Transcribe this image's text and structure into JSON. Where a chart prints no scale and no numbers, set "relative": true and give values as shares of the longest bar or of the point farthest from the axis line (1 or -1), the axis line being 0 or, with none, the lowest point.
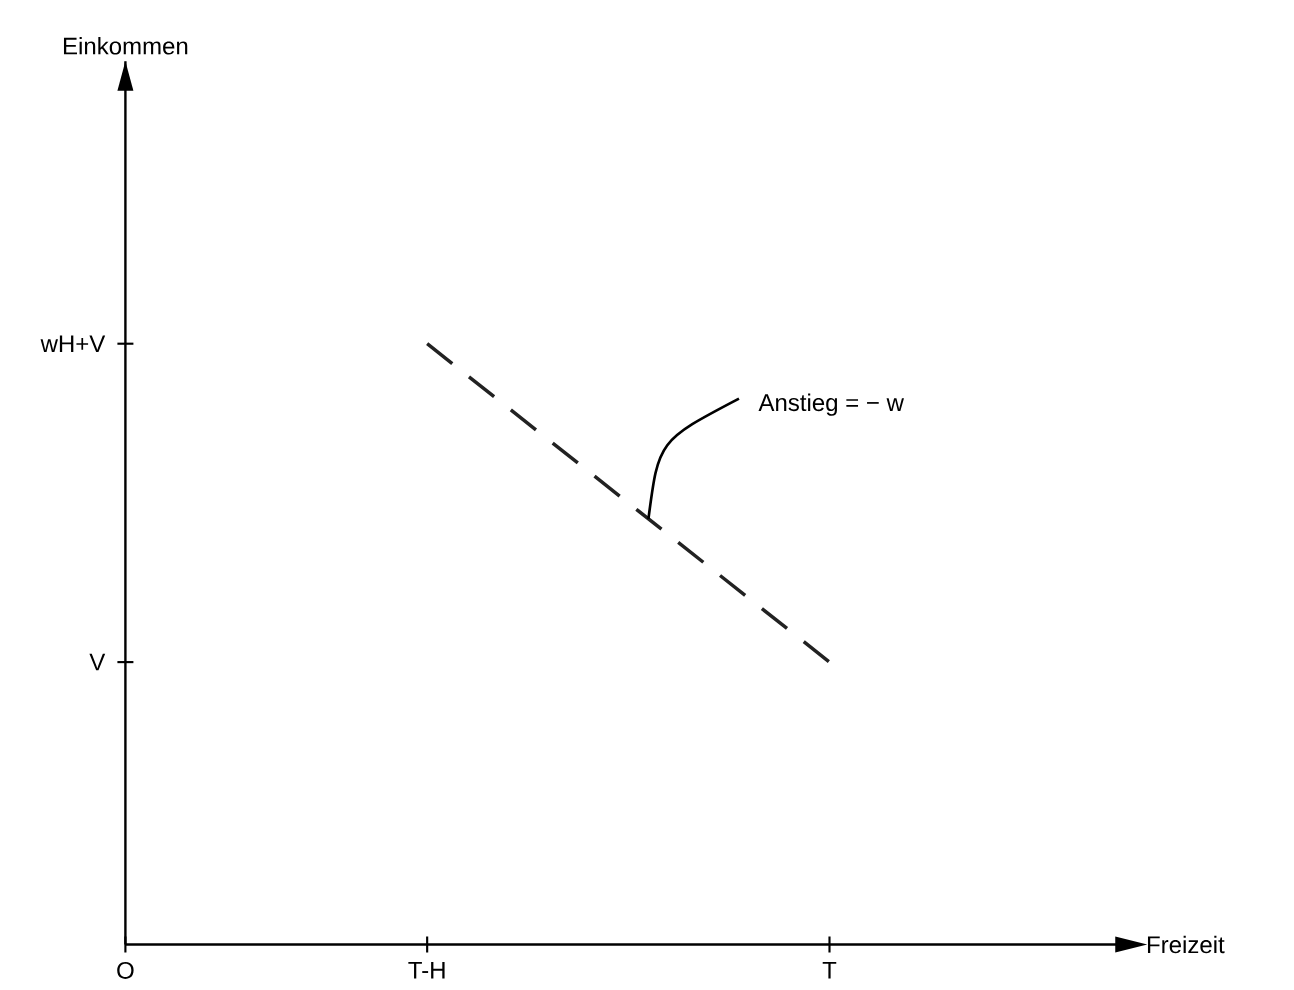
{
  "chart_data": {
    "type": "line",
    "xlabel": "Freizeit",
    "relative": true,
    "categories": [
      "O",
      null,
      null,
      "T-H",
      null,
      null,
      null,
      "T",
      null,
      null,
      null
    ],
    "series": [
      {
        "color": "#222222",
        "values": [
          null,
          null,
          null,
          1,
          null,
          null,
          null,
          0.47,
          null,
          null,
          null
        ],
        "line_style": "dashed"
      }
    ],
    "annotations": [
      "wH+V",
      "V",
      "Anstieg = − w",
      "Einkommen"
    ]
  }
}
